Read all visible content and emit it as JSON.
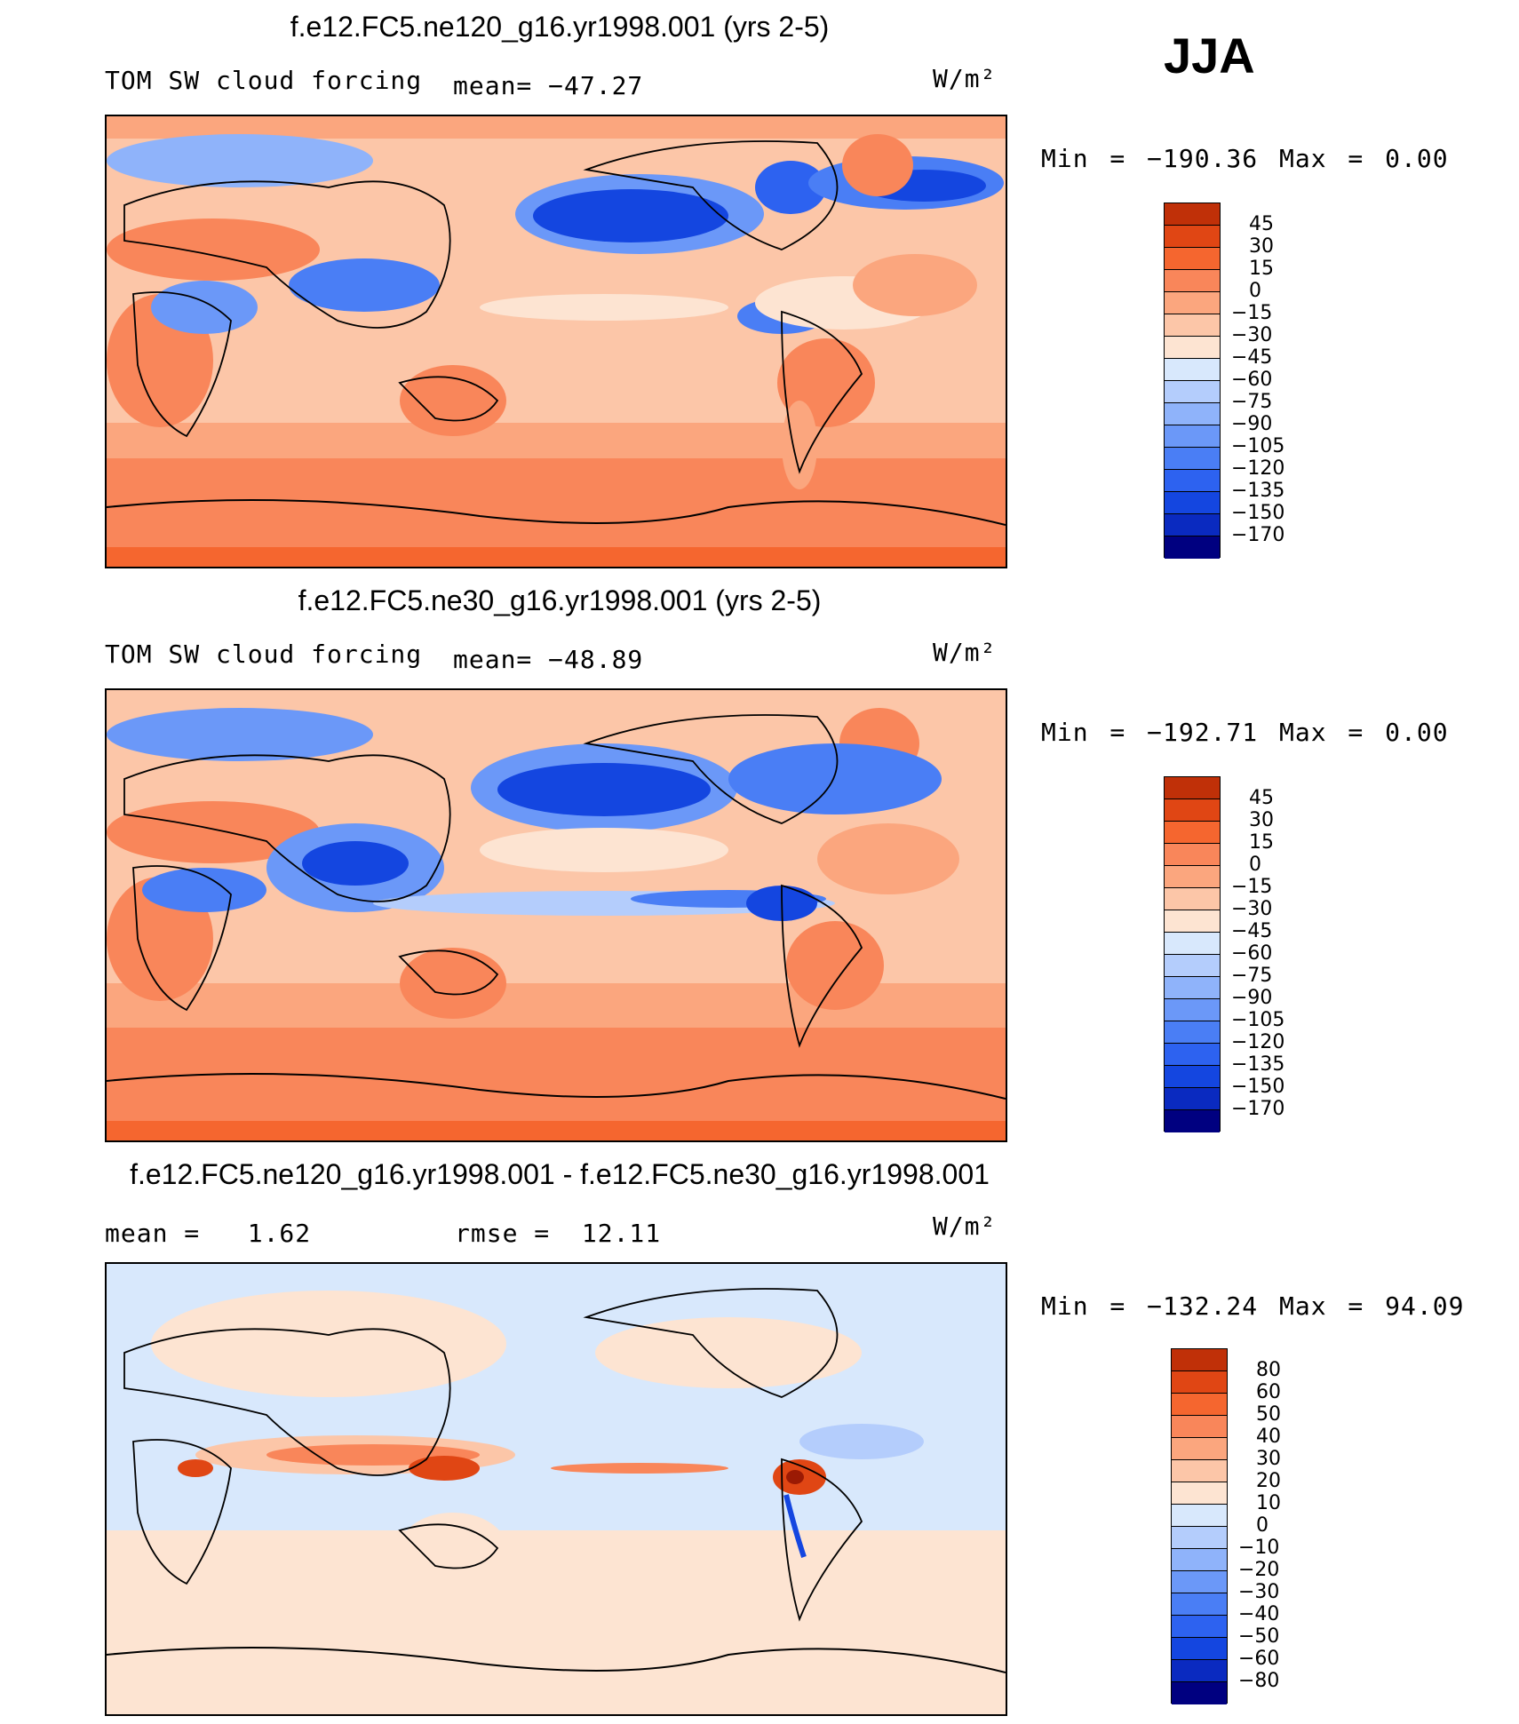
{
  "season": "JJA",
  "units": "W/m²",
  "colors": {
    "blue_red": [
      "#000080",
      "#0a2ac0",
      "#1446e0",
      "#2d62f0",
      "#4a7ef5",
      "#6b98f8",
      "#8fb3fa",
      "#b4cdfc",
      "#d8e8fc",
      "#fde4d2",
      "#fcc6a8",
      "#fba67e",
      "#f9865a",
      "#f5662f",
      "#e04614",
      "#c03008",
      "#9b1a04",
      "#7a0e02"
    ],
    "diff": [
      "#000080",
      "#0a2ac0",
      "#1446e0",
      "#2d62f0",
      "#4a7ef5",
      "#6b98f8",
      "#8fb3fa",
      "#b4cdfc",
      "#d8e8fc",
      "#fde4d2",
      "#fcc6a8",
      "#fba67e",
      "#f9865a",
      "#f5662f",
      "#e04614",
      "#c03008",
      "#7a0e02"
    ]
  },
  "chart_data": [
    {
      "type": "heatmap",
      "title": "f.e12.FC5.ne120_g16.yr1998.001 (yrs 2-5)",
      "subtitle": "TOM SW cloud forcing",
      "stat_text": "mean= −47.27",
      "minmax_text": "Min = −190.36 Max = 0.00",
      "units": "W/m²",
      "min": -190.36,
      "max": 0.0,
      "mean": -47.27,
      "colorbar_levels": [
        "45",
        "30",
        "15",
        "0",
        "−15",
        "−30",
        "−45",
        "−60",
        "−75",
        "−90",
        "−105",
        "−120",
        "−135",
        "−150",
        "−170"
      ]
    },
    {
      "type": "heatmap",
      "title": "f.e12.FC5.ne30_g16.yr1998.001 (yrs 2-5)",
      "subtitle": "TOM SW cloud forcing",
      "stat_text": "mean= −48.89",
      "minmax_text": "Min = −192.71 Max = 0.00",
      "units": "W/m²",
      "min": -192.71,
      "max": 0.0,
      "mean": -48.89,
      "colorbar_levels": [
        "45",
        "30",
        "15",
        "0",
        "−15",
        "−30",
        "−45",
        "−60",
        "−75",
        "−90",
        "−105",
        "−120",
        "−135",
        "−150",
        "−170"
      ]
    },
    {
      "type": "heatmap",
      "title": "f.e12.FC5.ne120_g16.yr1998.001 - f.e12.FC5.ne30_g16.yr1998.001",
      "mean_text": "mean =   1.62",
      "rmse_text": "rmse =  12.11",
      "minmax_text": "Min = −132.24 Max = 94.09",
      "units": "W/m²",
      "min": -132.24,
      "max": 94.09,
      "mean": 1.62,
      "rmse": 12.11,
      "colorbar_levels": [
        "80",
        "60",
        "50",
        "40",
        "30",
        "20",
        "10",
        "0",
        "−10",
        "−20",
        "−30",
        "−40",
        "−50",
        "−60",
        "−80"
      ]
    }
  ]
}
